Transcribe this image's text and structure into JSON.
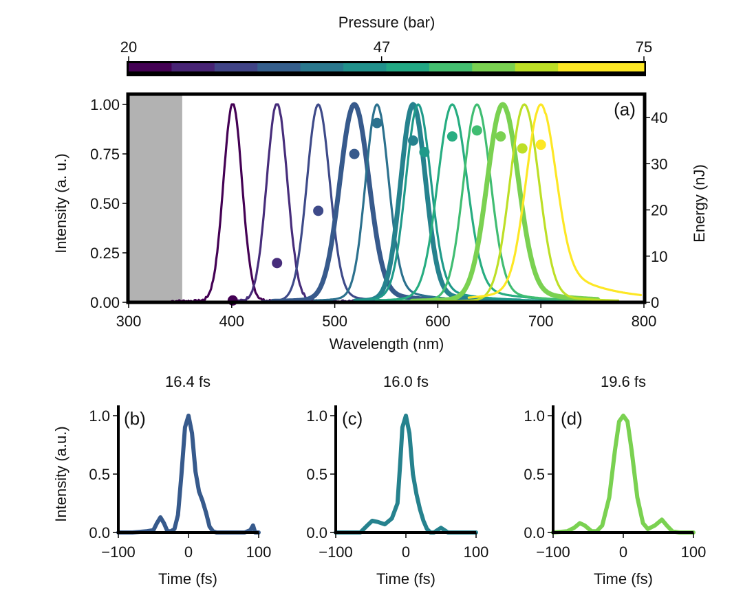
{
  "chart_data": [
    {
      "id": "colorbar",
      "type": "heatmap",
      "title": "Pressure (bar)",
      "range": [
        20,
        75
      ],
      "ticks": [
        20,
        47,
        75
      ],
      "tick_labels": [
        "20",
        "47",
        "75"
      ],
      "colors": [
        "#440154",
        "#482475",
        "#414487",
        "#355f8d",
        "#2a788e",
        "#21918c",
        "#22a884",
        "#44bf70",
        "#7ad151",
        "#bddf26",
        "#fde725",
        "#fde725"
      ]
    },
    {
      "id": "panel-a",
      "type": "line",
      "panel_label": "(a)",
      "xlabel": "Wavelength (nm)",
      "ylabel": "Intensity (a. u.)",
      "y2label": "Energy (nJ)",
      "xlim": [
        300,
        800
      ],
      "ylim": [
        0,
        1.05
      ],
      "y2lim": [
        0,
        45
      ],
      "xticks": [
        300,
        400,
        500,
        600,
        700,
        800
      ],
      "yticks": [
        0.0,
        0.25,
        0.5,
        0.75,
        1.0
      ],
      "ytick_labels": [
        "0.00",
        "0.25",
        "0.50",
        "0.75",
        "1.00"
      ],
      "y2ticks": [
        0,
        10,
        20,
        30,
        40
      ],
      "shaded_region": {
        "x_from": 300,
        "x_to": 352,
        "color": "#b2b2b2"
      },
      "grid": false,
      "series": [
        {
          "name": "spectrum-1",
          "color": "#440154",
          "peak_nm": 401,
          "width_nm": 9,
          "tail": 0.0,
          "start_nm": 342,
          "end_nm": 470,
          "bold": false,
          "noisy": true
        },
        {
          "name": "spectrum-2",
          "color": "#472d7b",
          "peak_nm": 444,
          "width_nm": 10,
          "tail": 0.0,
          "start_nm": 395,
          "end_nm": 520,
          "bold": false,
          "noisy": true
        },
        {
          "name": "spectrum-3",
          "color": "#3e4a89",
          "peak_nm": 484,
          "width_nm": 11,
          "tail": 0.04,
          "start_nm": 430,
          "end_nm": 560,
          "bold": false,
          "noisy": false
        },
        {
          "name": "spectrum-4",
          "color": "#375a8c",
          "peak_nm": 519,
          "width_nm": 14,
          "tail": 0.05,
          "start_nm": 440,
          "end_nm": 630,
          "bold": true,
          "noisy": false
        },
        {
          "name": "spectrum-5",
          "color": "#2c718e",
          "peak_nm": 541,
          "width_nm": 11,
          "tail": 0.08,
          "start_nm": 480,
          "end_nm": 700,
          "bold": false,
          "noisy": false
        },
        {
          "name": "spectrum-6",
          "color": "#26828e",
          "peak_nm": 576,
          "width_nm": 12,
          "tail": 0.05,
          "start_nm": 520,
          "end_nm": 680,
          "bold": true,
          "noisy": false
        },
        {
          "name": "spectrum-7",
          "color": "#1f9a8a",
          "peak_nm": 581,
          "width_nm": 12,
          "tail": 0.08,
          "start_nm": 520,
          "end_nm": 730,
          "bold": false,
          "noisy": false
        },
        {
          "name": "spectrum-8",
          "color": "#27ad81",
          "peak_nm": 614,
          "width_nm": 14,
          "tail": 0.08,
          "start_nm": 540,
          "end_nm": 735,
          "bold": false,
          "noisy": false
        },
        {
          "name": "spectrum-9",
          "color": "#40bd72",
          "peak_nm": 638,
          "width_nm": 13,
          "tail": 0.06,
          "start_nm": 560,
          "end_nm": 735,
          "bold": false,
          "noisy": false
        },
        {
          "name": "spectrum-10",
          "color": "#7ad151",
          "peak_nm": 663,
          "width_nm": 15,
          "tail": 0.06,
          "start_nm": 575,
          "end_nm": 755,
          "bold": true,
          "noisy": false
        },
        {
          "name": "spectrum-11",
          "color": "#bddf26",
          "peak_nm": 684,
          "width_nm": 14,
          "tail": 0.04,
          "start_nm": 600,
          "end_nm": 775,
          "bold": false,
          "noisy": false
        },
        {
          "name": "spectrum-12",
          "color": "#fde725",
          "peak_nm": 700,
          "width_nm": 14,
          "tail": 0.18,
          "start_nm": 630,
          "end_nm": 797,
          "bold": false,
          "noisy": false
        }
      ],
      "energy_points": {
        "wavelength_nm": [
          401,
          444,
          484,
          519,
          541,
          576,
          587,
          614,
          638,
          661,
          682,
          700
        ],
        "energy_nJ": [
          0.4,
          8.5,
          19.8,
          32.1,
          38.8,
          35.0,
          32.5,
          35.9,
          37.2,
          35.9,
          33.3,
          34.1
        ]
      }
    },
    {
      "id": "panel-b",
      "type": "line",
      "panel_label": "(b)",
      "title": "16.4 fs",
      "xlabel": "Time (fs)",
      "ylabel": "Intensity (a.u.)",
      "xlim": [
        -100,
        100
      ],
      "ylim": [
        0,
        1.1
      ],
      "xticks": [
        -100,
        0,
        100
      ],
      "xtick_labels": [
        "−100",
        "0",
        "100"
      ],
      "yticks": [
        0.0,
        0.5,
        1.0
      ],
      "ytick_labels": [
        "0.0",
        "0.5",
        "1.0"
      ],
      "color": "#375a8c",
      "x": [
        -100,
        -80,
        -60,
        -50,
        -45,
        -40,
        -35,
        -30,
        -25,
        -20,
        -15,
        -10,
        -5,
        0,
        5,
        10,
        15,
        20,
        25,
        30,
        35,
        40,
        60,
        80,
        88,
        92,
        95,
        100
      ],
      "y": [
        0.0,
        0.0,
        0.01,
        0.02,
        0.08,
        0.13,
        0.08,
        0.01,
        0.01,
        0.03,
        0.15,
        0.5,
        0.9,
        1.0,
        0.85,
        0.52,
        0.35,
        0.27,
        0.17,
        0.05,
        0.01,
        0.0,
        0.0,
        0.0,
        0.02,
        0.06,
        0.0,
        0.0
      ]
    },
    {
      "id": "panel-c",
      "type": "line",
      "panel_label": "(c)",
      "title": "16.0 fs",
      "xlabel": "Time (fs)",
      "ylabel": "",
      "xlim": [
        -100,
        100
      ],
      "ylim": [
        0,
        1.1
      ],
      "xticks": [
        -100,
        0,
        100
      ],
      "xtick_labels": [
        "−100",
        "0",
        "100"
      ],
      "yticks": [
        0.0,
        0.5,
        1.0
      ],
      "ytick_labels": [
        "0.0",
        "0.5",
        "1.0"
      ],
      "color": "#26828e",
      "x": [
        -100,
        -80,
        -65,
        -55,
        -48,
        -40,
        -30,
        -20,
        -12,
        -8,
        -5,
        0,
        5,
        10,
        15,
        20,
        25,
        30,
        35,
        40,
        50,
        60,
        70,
        100
      ],
      "y": [
        0.0,
        0.0,
        0.0,
        0.06,
        0.1,
        0.09,
        0.07,
        0.12,
        0.25,
        0.6,
        0.9,
        1.0,
        0.85,
        0.5,
        0.33,
        0.2,
        0.1,
        0.03,
        0.0,
        0.0,
        0.04,
        0.0,
        0.0,
        0.0
      ]
    },
    {
      "id": "panel-d",
      "type": "line",
      "panel_label": "(d)",
      "title": "19.6 fs",
      "xlabel": "Time (fs)",
      "ylabel": "",
      "xlim": [
        -100,
        100
      ],
      "ylim": [
        0,
        1.1
      ],
      "xticks": [
        -100,
        0,
        100
      ],
      "xtick_labels": [
        "−100",
        "0",
        "100"
      ],
      "yticks": [
        0.0,
        0.5,
        1.0
      ],
      "ytick_labels": [
        "0.0",
        "0.5",
        "1.0"
      ],
      "color": "#7ad151",
      "x": [
        -100,
        -80,
        -70,
        -62,
        -55,
        -45,
        -38,
        -30,
        -20,
        -12,
        -6,
        0,
        6,
        12,
        20,
        28,
        35,
        45,
        55,
        62,
        70,
        80,
        100
      ],
      "y": [
        0.0,
        0.01,
        0.04,
        0.08,
        0.06,
        0.01,
        0.01,
        0.06,
        0.3,
        0.7,
        0.95,
        1.0,
        0.95,
        0.7,
        0.3,
        0.08,
        0.03,
        0.06,
        0.11,
        0.06,
        0.01,
        0.0,
        0.0
      ]
    }
  ]
}
